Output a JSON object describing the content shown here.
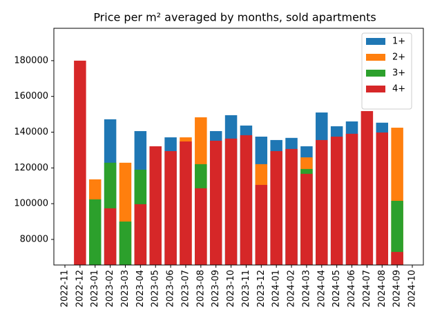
{
  "chart_data": {
    "type": "bar",
    "title": "Price per m² averaged by months, sold apartments",
    "categories": [
      "2022-11",
      "2022-12",
      "2023-01",
      "2023-02",
      "2023-03",
      "2023-04",
      "2023-05",
      "2023-06",
      "2023-07",
      "2023-08",
      "2023-09",
      "2023-10",
      "2023-11",
      "2023-12",
      "2024-01",
      "2024-02",
      "2024-03",
      "2024-04",
      "2024-05",
      "2024-06",
      "2024-07",
      "2024-08",
      "2024-09",
      "2024-10"
    ],
    "series": [
      {
        "name": "1+",
        "color": "#1f77b4",
        "values": [
          null,
          null,
          null,
          147200,
          null,
          140600,
          null,
          137100,
          null,
          null,
          140600,
          149500,
          143700,
          137500,
          135600,
          136800,
          132100,
          151000,
          143300,
          146000,
          null,
          145300,
          null,
          null
        ]
      },
      {
        "name": "2+",
        "color": "#ff7f0e",
        "values": [
          null,
          null,
          113600,
          null,
          122900,
          null,
          null,
          null,
          137100,
          148300,
          null,
          null,
          null,
          122100,
          null,
          null,
          125900,
          null,
          null,
          null,
          null,
          null,
          142500,
          null
        ]
      },
      {
        "name": "3+",
        "color": "#2ca02c",
        "values": [
          null,
          null,
          102400,
          122900,
          90000,
          119000,
          null,
          null,
          null,
          122100,
          null,
          null,
          null,
          null,
          null,
          null,
          119400,
          null,
          null,
          null,
          null,
          null,
          101600,
          null
        ]
      },
      {
        "name": "4+",
        "color": "#d62728",
        "values": [
          null,
          180000,
          null,
          97400,
          null,
          99700,
          132100,
          129400,
          134800,
          108600,
          135200,
          136400,
          138300,
          110500,
          129400,
          130600,
          116700,
          135600,
          137500,
          139100,
          151800,
          139800,
          73000,
          null
        ]
      }
    ],
    "ylim": [
      65700,
      198100
    ],
    "yticks": [
      80000,
      100000,
      120000,
      140000,
      160000,
      180000
    ],
    "grid": false,
    "legend": "upper right"
  }
}
